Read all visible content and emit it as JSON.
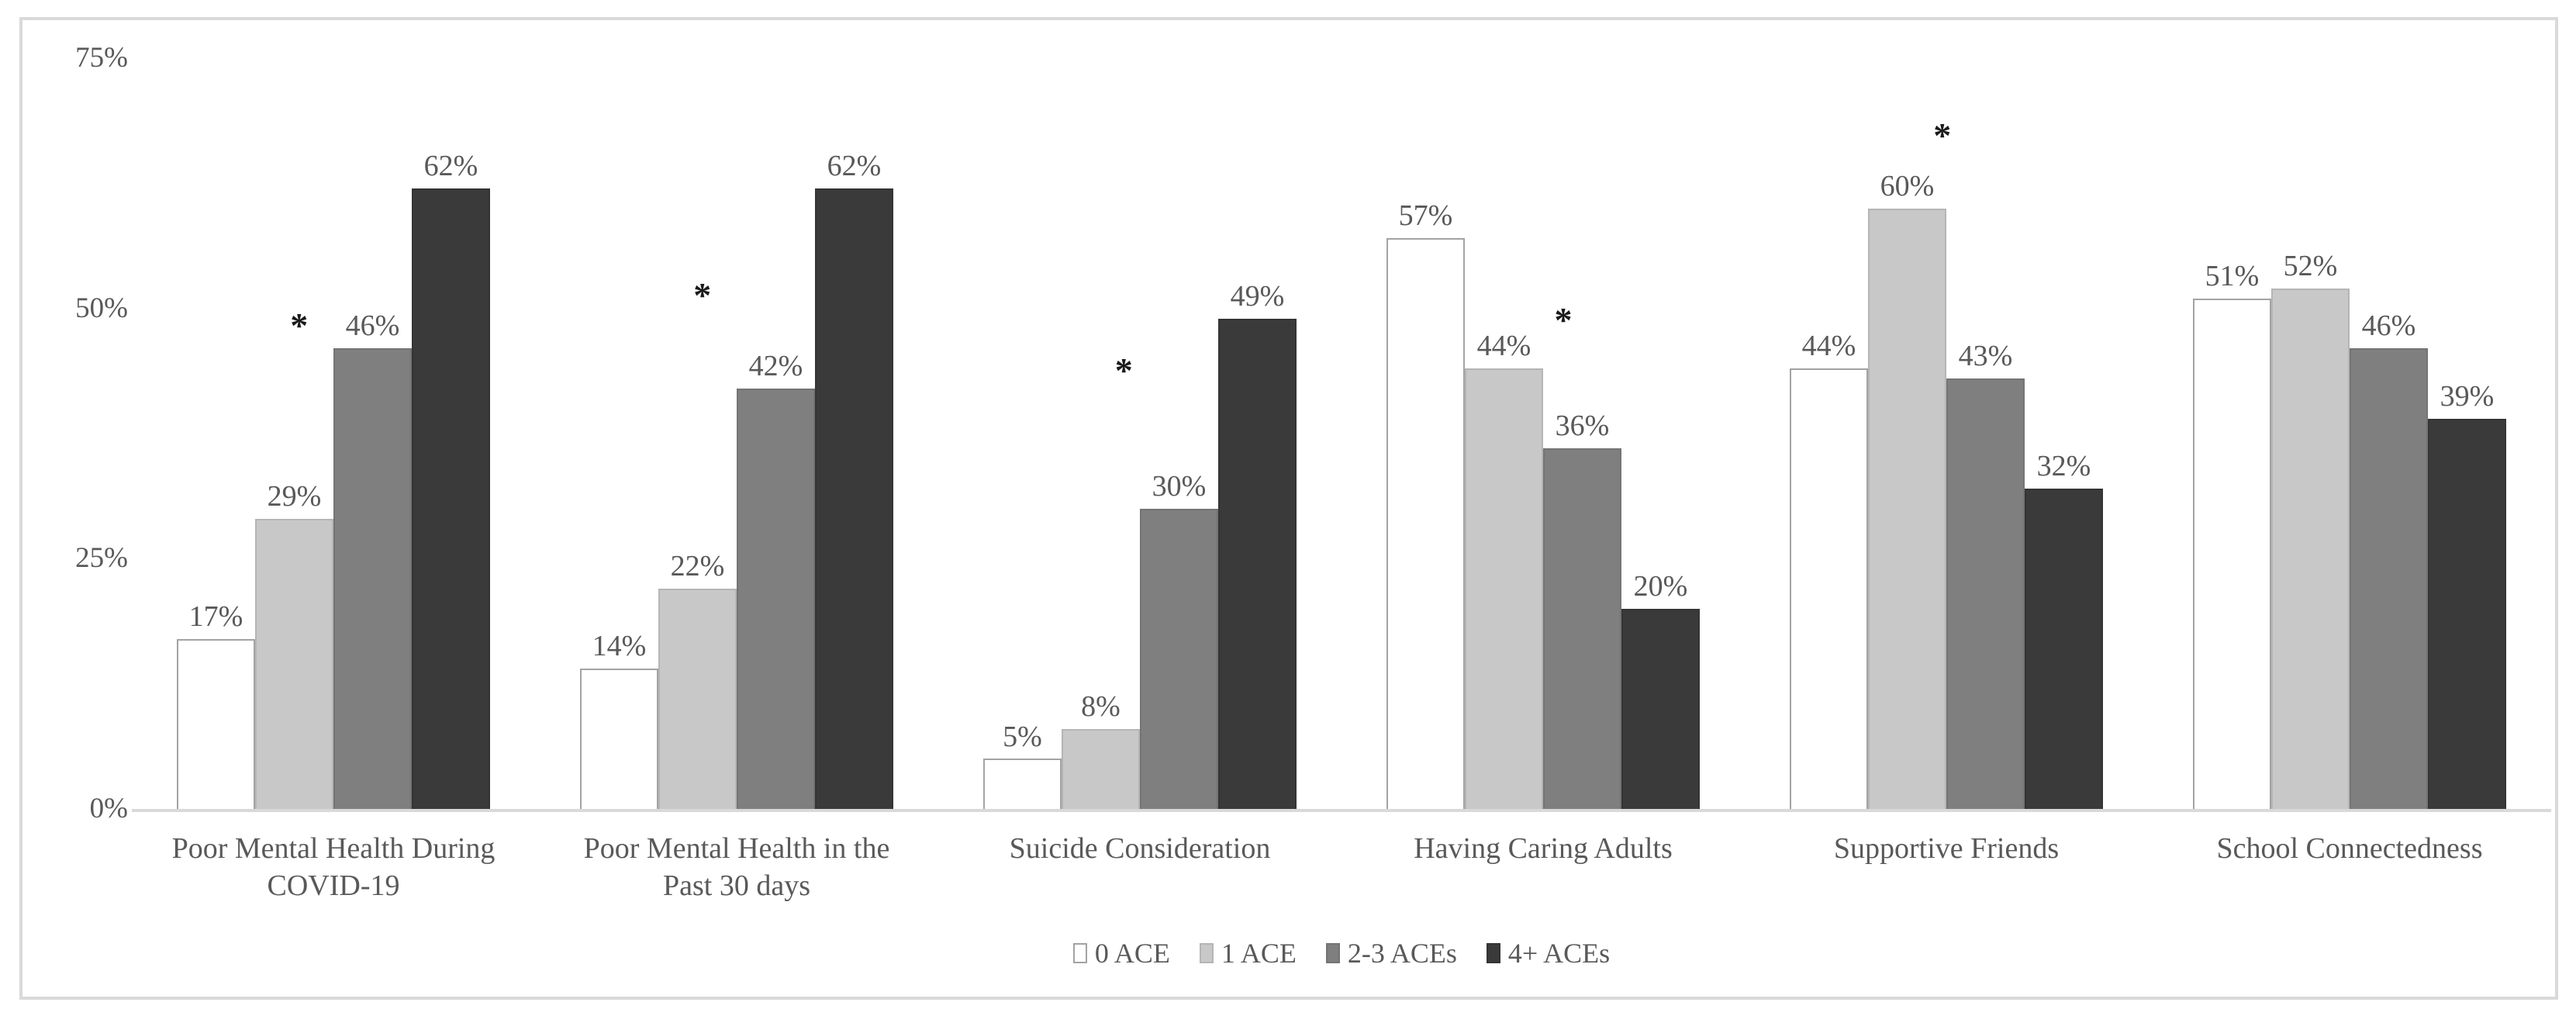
{
  "chart_data": {
    "type": "bar",
    "title": "",
    "grid": false,
    "value_suffix": "%",
    "y_axis": {
      "min": 0,
      "max": 75,
      "ticks": [
        0,
        25,
        50,
        75
      ],
      "tick_labels": [
        "0%",
        "25%",
        "50%",
        "75%"
      ]
    },
    "categories": [
      "Poor Mental Health During COVID-19",
      "Poor Mental Health in the Past 30 days",
      "Suicide Consideration",
      "Having Caring Adults",
      "Supportive Friends",
      "School Connectedness"
    ],
    "category_lines": [
      [
        "Poor Mental Health During",
        "COVID-19"
      ],
      [
        "Poor Mental Health in the",
        "Past 30 days"
      ],
      [
        "Suicide Consideration"
      ],
      [
        "Having Caring Adults"
      ],
      [
        "Supportive Friends"
      ],
      [
        "School Connectedness"
      ]
    ],
    "series": [
      {
        "name": "0 ACE",
        "fill": "#ffffff",
        "border": "#a3a3a3",
        "values": [
          17,
          14,
          5,
          57,
          44,
          51
        ]
      },
      {
        "name": "1 ACE",
        "fill": "#c8c8c8",
        "border": "#b5b5b5",
        "values": [
          29,
          22,
          8,
          44,
          60,
          52
        ]
      },
      {
        "name": "2-3 ACEs",
        "fill": "#7f7f7f",
        "border": "#747474",
        "values": [
          46,
          42,
          30,
          36,
          43,
          46
        ]
      },
      {
        "name": "4+ ACEs",
        "fill": "#3a3a3a",
        "border": "#343434",
        "values": [
          62,
          62,
          49,
          20,
          32,
          39
        ]
      }
    ],
    "annotations": [
      {
        "category_index": 0,
        "symbol": "*",
        "left_pct": 41.5,
        "y_value": 46.5
      },
      {
        "category_index": 1,
        "symbol": "*",
        "left_pct": 41.5,
        "y_value": 49.5
      },
      {
        "category_index": 2,
        "symbol": "*",
        "left_pct": 46,
        "y_value": 42
      },
      {
        "category_index": 3,
        "symbol": "*",
        "left_pct": 55,
        "y_value": 47
      },
      {
        "category_index": 4,
        "symbol": "*",
        "left_pct": 49,
        "y_value": 65.5
      }
    ],
    "legend": {
      "position": "bottom",
      "items": [
        "0 ACE",
        "1 ACE",
        "2-3 ACEs",
        "4+ ACEs"
      ]
    }
  },
  "colors": {
    "label_text": "#595959",
    "axis_line": "#d9d9d9",
    "figure_border": "#d9d9d9",
    "annotation": "#1a1a1a",
    "background": "#ffffff"
  }
}
